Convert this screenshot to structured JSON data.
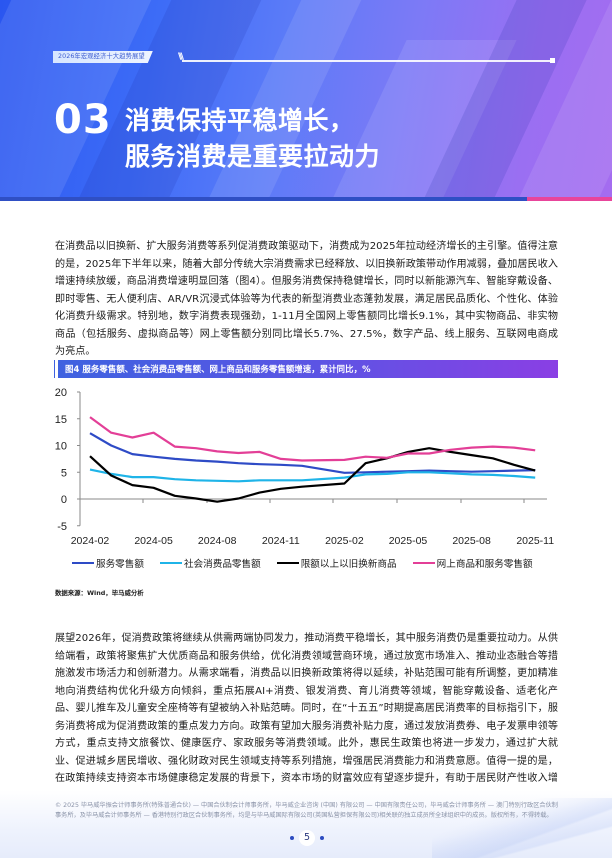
{
  "header": {
    "tag": "2026年宏观经济十大趋势展望",
    "section_number": "03",
    "title_line1": "消费保持平稳增长，",
    "title_line2": "服务消费是重要拉动力",
    "colors": {
      "primary": "#2f4fc4",
      "accent_pink": "#e8459b"
    }
  },
  "body": {
    "paragraph1": "在消费品以旧换新、扩大服务消费等系列促消费政策驱动下，消费成为2025年拉动经济增长的主引擎。值得注意的是，2025年下半年以来，随着大部分传统大宗消费需求已经释放、以旧换新政策带动作用减弱，叠加居民收入增速持续放缓，商品消费增速明显回落（图4）。但服务消费保持稳健增长，同时以新能源汽车、智能穿戴设备、即时零售、无人便利店、AR/VR沉浸式体验等为代表的新型消费业态蓬勃发展，满足居民品质化、个性化、体验化消费升级需求。特别地，数字消费表现强劲，1-11月全国网上零售额同比增长9.1%，其中实物商品、非实物商品（包括服务、虚拟商品等）网上零售额分别同比增长5.7%、27.5%，数字产品、线上服务、互联网电商成为亮点。",
    "paragraph2": "展望2026年，促消费政策将继续从供需两端协同发力，推动消费平稳增长，其中服务消费仍是重要拉动力。从供给端看，政策将聚焦扩大优质商品和服务供给，优化消费领域营商环境，通过放宽市场准入、推动业态融合等措施激发市场活力和创新潜力。从需求端看，消费品以旧换新政策将得以延续，补贴范围可能有所调整，更加精准地向消费结构优化升级方向倾斜，重点拓展AI+消费、银发消费、育儿消费等领域，智能穿戴设备、适老化产品、婴儿推车及儿童安全座椅等有望被纳入补贴范畴。同时，在“十五五”时期提高居民消费率的目标指引下，服务消费将成为促消费政策的重点发力方向。政策有望加大服务消费补贴力度，通过发放消费券、电子发票申领等方式，重点支持文旅餐饮、健康医疗、家政服务等消费领域。此外，惠民生政策也将进一步发力，通过扩大就业、促进城乡居民增收、强化财政对民生领域支持等系列措施，增强居民消费能力和消费意愿。值得一提的是，在政策持续支持资本市场健康稳定发展的背景下，资本市场的财富效应有望逐步提升，有助于居民财产性收入增速回升，推动居民消费倾向边际改善。"
  },
  "figure": {
    "caption": "图4 服务零售额、社会消费品零售额、网上商品和服务零售额增速，累计同比，%",
    "source": "数据来源：Wind，毕马威分析"
  },
  "chart_data": {
    "type": "line",
    "title": "图4 服务零售额、社会消费品零售额、网上商品和服务零售额增速，累计同比，%",
    "xlabel": "",
    "ylabel": "%",
    "ylim": [
      -5,
      20
    ],
    "yticks": [
      20,
      15,
      10,
      5,
      0,
      -5
    ],
    "xtick_labels": [
      "2024-02",
      "2024-05",
      "2024-08",
      "2024-11",
      "2025-02",
      "2025-05",
      "2025-08",
      "2025-11"
    ],
    "grid": false,
    "legend_position": "bottom",
    "x": [
      "2024-02",
      "2024-03",
      "2024-04",
      "2024-05",
      "2024-06",
      "2024-07",
      "2024-08",
      "2024-09",
      "2024-10",
      "2024-11",
      "2024-12",
      "2025-02",
      "2025-03",
      "2025-04",
      "2025-05",
      "2025-06",
      "2025-07",
      "2025-08",
      "2025-09",
      "2025-10",
      "2025-11"
    ],
    "series": [
      {
        "name": "服务零售额",
        "color": "#2e4bc6",
        "values": [
          12.3,
          10.0,
          8.4,
          7.9,
          7.5,
          7.2,
          7.0,
          6.7,
          6.5,
          6.4,
          6.2,
          4.9,
          5.0,
          5.1,
          5.2,
          5.3,
          5.2,
          5.1,
          5.2,
          5.3,
          5.4
        ]
      },
      {
        "name": "社会消费品零售额",
        "color": "#1fb4e8",
        "values": [
          5.5,
          4.7,
          4.1,
          4.1,
          3.7,
          3.5,
          3.4,
          3.3,
          3.5,
          3.5,
          3.5,
          4.0,
          4.6,
          4.7,
          5.0,
          5.0,
          4.8,
          4.6,
          4.5,
          4.3,
          4.0
        ]
      },
      {
        "name": "限额以上以旧换新商品",
        "color": "#000000",
        "values": [
          8.0,
          4.4,
          2.6,
          2.1,
          0.6,
          0.1,
          -0.5,
          0.1,
          1.2,
          1.9,
          2.3,
          2.9,
          6.7,
          7.6,
          8.8,
          9.5,
          8.8,
          8.2,
          7.6,
          6.4,
          5.3
        ]
      },
      {
        "name": "网上商品和服务零售额",
        "color": "#e33f97",
        "values": [
          15.3,
          12.4,
          11.5,
          12.4,
          9.8,
          9.5,
          8.9,
          8.6,
          8.8,
          7.5,
          7.2,
          7.3,
          7.9,
          7.7,
          8.5,
          8.5,
          9.2,
          9.6,
          9.8,
          9.6,
          9.1
        ]
      }
    ]
  },
  "footer": {
    "copyright": "© 2025 毕马威华振会计师事务所(特殊普通合伙) — 中国合伙制会计师事务所，毕马威企业咨询 (中国) 有限公司 — 中国有限责任公司，毕马威会计师事务所 — 澳门特别行政区合伙制事务所，及毕马威会计师事务所 — 香港特别行政区合伙制事务所，均是与毕马威国际有限公司(英国私营担保有限公司)相关联的独立成员所全球组织中的成员。版权所有，不得转载。",
    "page_number": "5"
  }
}
